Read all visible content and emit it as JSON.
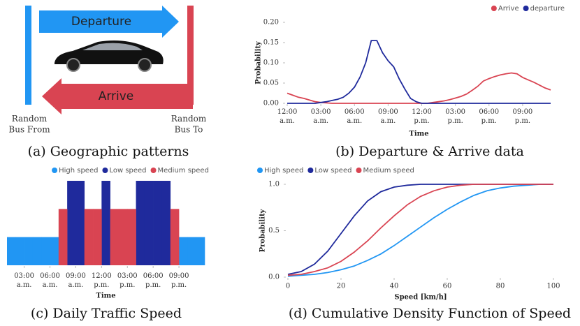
{
  "diagram": {
    "departure": "Departure",
    "arrive": "Arrive",
    "from": "Random\nBus From",
    "to": "Random\nBus To",
    "caption": "(a) Geographic patterns"
  },
  "chart_data": [
    {
      "type": "line",
      "caption": "(b) Departure & Arrive data",
      "ylabel": "Probability",
      "xlabel": "Time",
      "legend": "top-right",
      "x": [
        0,
        0.5,
        1,
        1.5,
        2,
        2.5,
        3,
        3.5,
        4,
        4.5,
        5,
        5.5,
        6,
        6.5,
        7,
        7.5,
        8,
        8.5,
        9,
        9.5,
        10,
        10.5,
        11,
        11.5,
        12,
        12.5,
        13,
        13.5,
        14,
        14.5,
        15,
        15.5,
        16,
        16.5,
        17,
        17.5,
        18,
        18.5,
        19,
        19.5,
        20,
        20.5,
        21,
        21.5,
        22,
        22.5,
        23,
        23.5
      ],
      "series": [
        {
          "name": "Arrive",
          "color": "#d94452",
          "values": [
            0.025,
            0.02,
            0.015,
            0.012,
            0.008,
            0.004,
            0.002,
            0.001,
            0,
            0,
            0,
            0,
            0,
            0,
            0,
            0,
            0,
            0,
            0,
            0,
            0,
            0,
            0,
            0,
            0,
            0,
            0.002,
            0.004,
            0.006,
            0.009,
            0.013,
            0.017,
            0.023,
            0.032,
            0.042,
            0.055,
            0.061,
            0.066,
            0.07,
            0.073,
            0.075,
            0.073,
            0.064,
            0.058,
            0.052,
            0.045,
            0.038,
            0.033
          ]
        },
        {
          "name": "departure",
          "color": "#1f2a9c",
          "values": [
            0,
            0,
            0,
            0,
            0,
            0,
            0.002,
            0.004,
            0.007,
            0.01,
            0.015,
            0.025,
            0.04,
            0.065,
            0.1,
            0.155,
            0.155,
            0.125,
            0.105,
            0.09,
            0.06,
            0.035,
            0.012,
            0.004,
            0,
            0,
            0,
            0,
            0,
            0,
            0,
            0,
            0,
            0,
            0,
            0,
            0,
            0,
            0,
            0,
            0,
            0,
            0,
            0,
            0,
            0,
            0,
            0
          ]
        }
      ],
      "xlim": [
        0,
        23.5
      ],
      "xticks": [
        {
          "value": 0,
          "label": "12:00\na.m."
        },
        {
          "value": 3,
          "label": "03:00\na.m."
        },
        {
          "value": 6,
          "label": "06:00\na.m."
        },
        {
          "value": 9,
          "label": "09:00\na.m."
        },
        {
          "value": 12,
          "label": "12:00\np.m."
        },
        {
          "value": 15,
          "label": "03:00\np.m."
        },
        {
          "value": 18,
          "label": "06:00\np.m."
        },
        {
          "value": 21,
          "label": "09:00\np.m."
        }
      ],
      "ylim": [
        0,
        0.2
      ],
      "yticks": [
        {
          "value": 0,
          "label": "0.00"
        },
        {
          "value": 0.05,
          "label": "0.05"
        },
        {
          "value": 0.1,
          "label": "0.10"
        },
        {
          "value": 0.15,
          "label": "0.15"
        },
        {
          "value": 0.2,
          "label": "0.20"
        }
      ]
    },
    {
      "type": "bar",
      "caption": "(c) Daily Traffic Speed",
      "xlabel": "Time",
      "legend": "top",
      "x": [
        1,
        2,
        3,
        4,
        5,
        6,
        7,
        8,
        9,
        10,
        11,
        12,
        13,
        14,
        15,
        16,
        17,
        18,
        19,
        20,
        21,
        22,
        23
      ],
      "series": [
        {
          "name": "High speed",
          "color": "#2196f3",
          "values": [
            1,
            1,
            1,
            1,
            1,
            1,
            null,
            null,
            null,
            null,
            null,
            null,
            null,
            null,
            null,
            null,
            null,
            null,
            null,
            null,
            1,
            1,
            1
          ]
        },
        {
          "name": "Low speed",
          "color": "#1f2a9c",
          "values": [
            null,
            null,
            null,
            null,
            null,
            null,
            null,
            3,
            3,
            null,
            null,
            3,
            null,
            null,
            null,
            3,
            3,
            3,
            3,
            null,
            null,
            null,
            null
          ]
        },
        {
          "name": "Medium speed",
          "color": "#d94452",
          "values": [
            null,
            null,
            null,
            null,
            null,
            null,
            2,
            null,
            null,
            2,
            2,
            null,
            2,
            2,
            2,
            null,
            null,
            null,
            null,
            2,
            null,
            null,
            null
          ]
        }
      ],
      "xlim": [
        1,
        24
      ],
      "xticks": [
        {
          "value": 3,
          "label": "03:00\na.m."
        },
        {
          "value": 6,
          "label": "06:00\na.m."
        },
        {
          "value": 9,
          "label": "09:00\na.m."
        },
        {
          "value": 12,
          "label": "12:00\np.m."
        },
        {
          "value": 15,
          "label": "03:00\np.m."
        },
        {
          "value": 18,
          "label": "06:00\np.m."
        },
        {
          "value": 21,
          "label": "09:00\np.m."
        }
      ],
      "ylim": [
        0,
        3
      ]
    },
    {
      "type": "line",
      "caption": "(d) Cumulative Density Function of Speed",
      "ylabel": "Probability",
      "xlabel": "Speed [km/h]",
      "legend": "top-left",
      "x": [
        0,
        5,
        10,
        15,
        20,
        25,
        30,
        35,
        40,
        45,
        50,
        55,
        60,
        65,
        70,
        75,
        80,
        85,
        90,
        95,
        100
      ],
      "series": [
        {
          "name": "High speed",
          "color": "#2196f3",
          "values": [
            0.01,
            0.02,
            0.03,
            0.05,
            0.08,
            0.12,
            0.18,
            0.25,
            0.34,
            0.44,
            0.54,
            0.64,
            0.73,
            0.81,
            0.88,
            0.93,
            0.96,
            0.98,
            0.99,
            1.0,
            1.0
          ]
        },
        {
          "name": "Low speed",
          "color": "#1f2a9c",
          "values": [
            0.03,
            0.06,
            0.14,
            0.28,
            0.47,
            0.66,
            0.82,
            0.92,
            0.97,
            0.99,
            1.0,
            1.0,
            1.0,
            1.0,
            1.0,
            1.0,
            1.0,
            1.0,
            1.0,
            1.0,
            1.0
          ]
        },
        {
          "name": "Medium speed",
          "color": "#d94452",
          "values": [
            0.02,
            0.03,
            0.06,
            0.1,
            0.17,
            0.27,
            0.39,
            0.53,
            0.66,
            0.78,
            0.87,
            0.93,
            0.97,
            0.99,
            1.0,
            1.0,
            1.0,
            1.0,
            1.0,
            1.0,
            1.0
          ]
        }
      ],
      "xlim": [
        0,
        100
      ],
      "xticks": [
        0,
        20,
        40,
        60,
        80,
        100
      ],
      "ylim": [
        0,
        1
      ],
      "yticks": [
        {
          "value": 0,
          "label": "0.0"
        },
        {
          "value": 0.5,
          "label": "0.5"
        },
        {
          "value": 1,
          "label": "1.0"
        }
      ]
    }
  ]
}
